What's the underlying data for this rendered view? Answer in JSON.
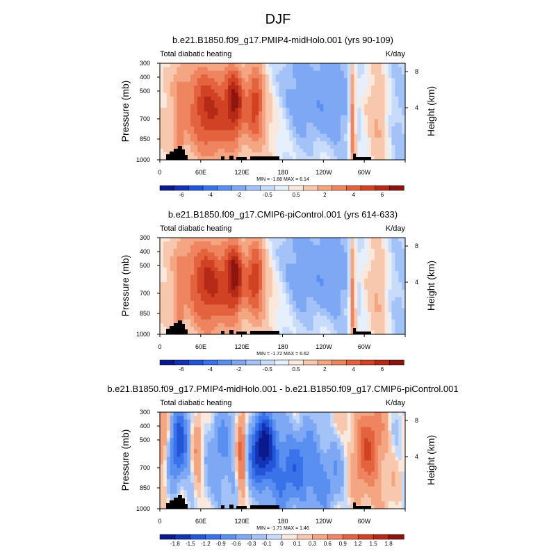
{
  "figure": {
    "title": "DJF"
  },
  "chart_data": [
    {
      "type": "heatmap",
      "title": "b.e21.B1850.f09_g17.PMIP4-midHolo.001 (yrs 90-109)",
      "left_label": "Total diabatic heating",
      "right_label": "K/day",
      "ylabel": "Pressure (mb)",
      "ylabel_right": "Height (km)",
      "x_ticks": [
        "0",
        "60E",
        "120E",
        "180",
        "120W",
        "60W"
      ],
      "y_ticks": [
        "300",
        "400",
        "500",
        "700",
        "850",
        "1000"
      ],
      "height_ticks": [
        "8",
        "4"
      ],
      "stats": "MIN =  -1.88  MAX =   6.14",
      "colorbar_labels": [
        "-6",
        "-4",
        "-2",
        "-0.5",
        "0.5",
        "2",
        "4",
        "6"
      ],
      "pattern": "full"
    },
    {
      "type": "heatmap",
      "title": "b.e21.B1850.f09_g17.CMIP6-piControl.001 (yrs 614-633)",
      "left_label": "Total diabatic heating",
      "right_label": "K/day",
      "ylabel": "Pressure (mb)",
      "ylabel_right": "Height (km)",
      "x_ticks": [
        "0",
        "60E",
        "120E",
        "180",
        "120W",
        "60W"
      ],
      "y_ticks": [
        "300",
        "400",
        "500",
        "700",
        "850",
        "1000"
      ],
      "height_ticks": [
        "8",
        "4"
      ],
      "stats": "MIN =  -1.72  MAX =   6.62",
      "colorbar_labels": [
        "-6",
        "-4",
        "-2",
        "-0.5",
        "0.5",
        "2",
        "4",
        "6"
      ],
      "pattern": "full"
    },
    {
      "type": "heatmap",
      "title": "b.e21.B1850.f09_g17.PMIP4-midHolo.001 - b.e21.B1850.f09_g17.CMIP6-piControl.001",
      "left_label": "Total diabatic heating",
      "right_label": "K/day",
      "ylabel": "Pressure (mb)",
      "ylabel_right": "Height (km)",
      "x_ticks": [
        "0",
        "60E",
        "120E",
        "180",
        "120W",
        "60W"
      ],
      "y_ticks": [
        "300",
        "400",
        "500",
        "700",
        "850",
        "1000"
      ],
      "height_ticks": [
        "8",
        "4"
      ],
      "stats": "MIN =  -1.71  MAX =   1.46",
      "colorbar_labels": [
        "-1.8",
        "-1.5",
        "-1.2",
        "-0.9",
        "-0.6",
        "-0.3",
        "-0.1",
        "0",
        "0.1",
        "0.3",
        "0.6",
        "0.9",
        "1.2",
        "1.5",
        "1.8"
      ],
      "pattern": "diff"
    }
  ],
  "colors": {
    "scale": [
      "#0a1a8c",
      "#1433b4",
      "#2255d8",
      "#3a72ea",
      "#5a8ff2",
      "#7ea8f4",
      "#a3c2f7",
      "#c8dbfa",
      "#e6effc",
      "#fbe8dc",
      "#f8c8ae",
      "#f4a582",
      "#ee8460",
      "#e4633f",
      "#d14225",
      "#b52a16",
      "#8e1410"
    ],
    "topo": "#000000"
  }
}
